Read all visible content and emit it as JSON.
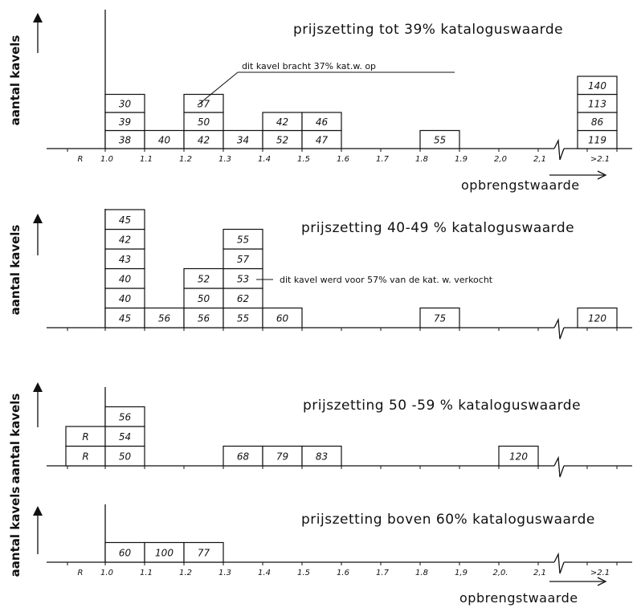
{
  "chart_data": [
    {
      "type": "bar",
      "stacked": true,
      "title": "prijszetting tot 39% kataloguswaarde",
      "ylabel": "aantal kavels",
      "xlabel": "opbrengstwaarde",
      "x_ticks": [
        "R",
        "1.0",
        "1.1",
        "1.2",
        "1.3",
        "1.4",
        "1.5",
        "1.6",
        "1.7",
        "1.8",
        "1.9",
        "2,0",
        "2,1",
        ">2.1"
      ],
      "bins": [
        {
          "x": "1.0-1.1",
          "lots": [
            "38",
            "39",
            "30"
          ]
        },
        {
          "x": "1.1-1.2",
          "lots": [
            "40"
          ]
        },
        {
          "x": "1.2-1.3",
          "lots": [
            "42",
            "50",
            "37"
          ]
        },
        {
          "x": "1.3-1.4",
          "lots": [
            "34"
          ]
        },
        {
          "x": "1.4-1.5",
          "lots": [
            "52",
            "42"
          ]
        },
        {
          "x": "1.5-1.6",
          "lots": [
            "47",
            "46"
          ]
        },
        {
          "x": "1.8-1.9",
          "lots": [
            "55"
          ]
        },
        {
          "x": ">2.1",
          "lots": [
            "119",
            "86",
            "113",
            "140"
          ]
        }
      ],
      "annotation": "dit kavel bracht 37% kat.w. op"
    },
    {
      "type": "bar",
      "stacked": true,
      "title": "prijszetting 40-49 % kataloguswaarde",
      "ylabel": "aantal kavels",
      "bins": [
        {
          "x": "1.0-1.1",
          "lots": [
            "45",
            "40",
            "40",
            "43",
            "42",
            "45"
          ]
        },
        {
          "x": "1.1-1.2",
          "lots": [
            "56"
          ]
        },
        {
          "x": "1.2-1.3",
          "lots": [
            "56",
            "50",
            "52"
          ]
        },
        {
          "x": "1.3-1.4",
          "lots": [
            "55",
            "62",
            "53",
            "57",
            "55"
          ]
        },
        {
          "x": "1.4-1.5",
          "lots": [
            "60"
          ]
        },
        {
          "x": "1.8-1.9",
          "lots": [
            "75"
          ]
        },
        {
          "x": ">2.1",
          "lots": [
            "120"
          ]
        }
      ],
      "annotation": "dit kavel werd voor 57% van de kat. w. verkocht"
    },
    {
      "type": "bar",
      "stacked": true,
      "title": "prijszetting 50 -59 % kataloguswaarde",
      "ylabel": "aantal kavels",
      "bins": [
        {
          "x": "R",
          "lots": [
            "R",
            "R"
          ]
        },
        {
          "x": "1.0-1.1",
          "lots": [
            "50",
            "54",
            "56"
          ]
        },
        {
          "x": "1.3-1.4",
          "lots": [
            "68"
          ]
        },
        {
          "x": "1.4-1.5",
          "lots": [
            "79"
          ]
        },
        {
          "x": "1.5-1.6",
          "lots": [
            "83"
          ]
        },
        {
          "x": "2.0-2.1",
          "lots": [
            "120"
          ]
        }
      ]
    },
    {
      "type": "bar",
      "stacked": true,
      "title": "prijszetting boven 60% kataloguswaarde",
      "ylabel": "aantal kavels",
      "xlabel": "opbrengstwaarde",
      "x_ticks": [
        "R",
        "1.0",
        "1.1",
        "1.2",
        "1.3",
        "1.4",
        "1.5",
        "1.6",
        "1.7",
        "1.8",
        "1,9",
        "2,0.",
        "2,1",
        ">2.1"
      ],
      "bins": [
        {
          "x": "1.0-1.1",
          "lots": [
            "60"
          ]
        },
        {
          "x": "1.1-1.2",
          "lots": [
            "100"
          ]
        },
        {
          "x": "1.2-1.3",
          "lots": [
            "77"
          ]
        }
      ]
    }
  ]
}
